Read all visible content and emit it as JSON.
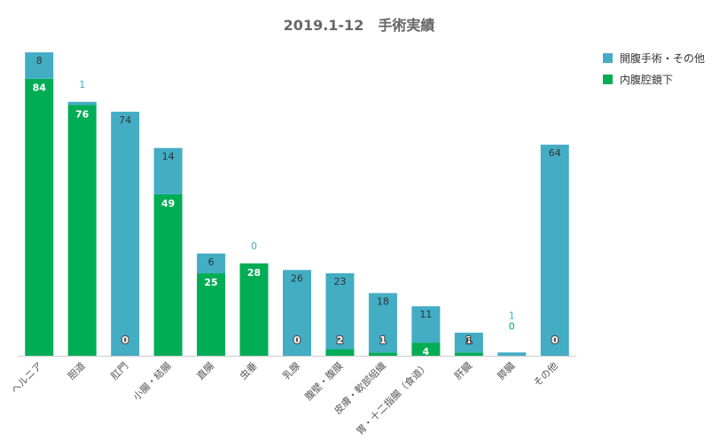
{
  "chart_data": {
    "type": "bar",
    "stacked": true,
    "title": "2019.1-12　手術実績",
    "categories": [
      "ヘルニア",
      "胆道",
      "肛門",
      "小腸・結腸",
      "直腸",
      "虫垂",
      "乳腺",
      "腹壁・腹膜",
      "皮膚・軟部組織",
      "胃・十二指腸（食道）",
      "肝臓",
      "膵臓",
      "その他"
    ],
    "series": [
      {
        "name": "内腹腔鏡下",
        "color": "#00ad55",
        "values": [
          84,
          76,
          0,
          49,
          25,
          28,
          0,
          2,
          1,
          4,
          1,
          0,
          0
        ]
      },
      {
        "name": "開腹手術・その他",
        "color": "#43adc4",
        "values": [
          8,
          1,
          74,
          14,
          6,
          0,
          26,
          23,
          18,
          11,
          6,
          1,
          64
        ]
      }
    ],
    "legend_order": [
      "開腹手術・その他",
      "内腹腔鏡下"
    ],
    "legend_position": "top-right",
    "ylim": [
      0,
      92
    ],
    "xlabel": "",
    "ylabel": "",
    "grid": false
  }
}
